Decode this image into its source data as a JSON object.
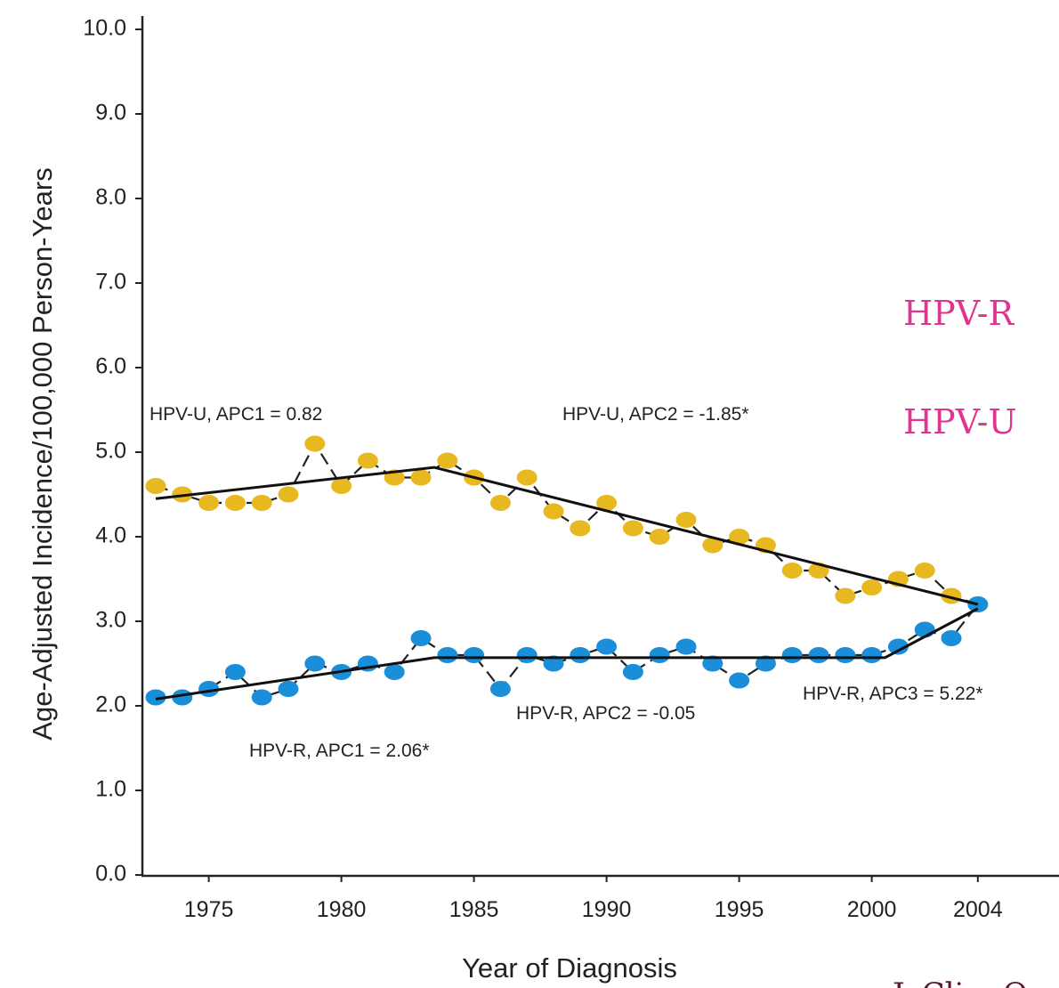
{
  "chart_data": {
    "type": "line",
    "y_label": "Age-Adjusted Incidence/100,000 Person-Years",
    "x_label": "Year of Diagnosis",
    "x": [
      1973,
      1974,
      1975,
      1976,
      1977,
      1978,
      1979,
      1980,
      1981,
      1982,
      1983,
      1984,
      1985,
      1986,
      1987,
      1988,
      1989,
      1990,
      1991,
      1992,
      1993,
      1994,
      1995,
      1996,
      1997,
      1998,
      1999,
      2000,
      2001,
      2002,
      2003,
      2004
    ],
    "series": [
      {
        "name": "HPV-U",
        "color": "#e8b820",
        "values": [
          4.6,
          4.5,
          4.4,
          4.4,
          4.4,
          4.5,
          5.1,
          4.6,
          4.9,
          4.7,
          4.7,
          4.9,
          4.7,
          4.4,
          4.7,
          4.3,
          4.1,
          4.4,
          4.1,
          4.0,
          4.2,
          3.9,
          4.0,
          3.9,
          3.6,
          3.6,
          3.3,
          3.4,
          3.5,
          3.6,
          3.3,
          3.2
        ]
      },
      {
        "name": "HPV-R",
        "color": "#1a8ed8",
        "values": [
          2.1,
          2.1,
          2.2,
          2.4,
          2.1,
          2.2,
          2.5,
          2.4,
          2.5,
          2.4,
          2.8,
          2.6,
          2.6,
          2.2,
          2.6,
          2.5,
          2.6,
          2.7,
          2.4,
          2.6,
          2.7,
          2.5,
          2.3,
          2.5,
          2.6,
          2.6,
          2.6,
          2.6,
          2.7,
          2.9,
          2.8,
          3.2
        ]
      }
    ],
    "trend_lines": [
      {
        "x": [
          1973,
          1983.5,
          2004
        ],
        "values": [
          4.45,
          4.82,
          3.2
        ]
      },
      {
        "x": [
          1973,
          1983.5,
          2000.5,
          2004
        ],
        "values": [
          2.08,
          2.57,
          2.57,
          3.15
        ]
      }
    ],
    "annotations": [
      "HPV-U, APC1 = 0.82",
      "HPV-U, APC2 = -1.85*",
      "HPV-R, APC1 = 2.06*",
      "HPV-R, APC2 = -0.05",
      "HPV-R, APC3 = 5.22*"
    ],
    "footer": "J. Clin. O",
    "xlim": [
      1972.5,
      2006
    ],
    "xticks": [
      1975,
      1980,
      1985,
      1990,
      1995,
      2000,
      2004
    ],
    "ylim": [
      0,
      10
    ],
    "yticks": [
      {
        "value": 0,
        "label": "0.0"
      },
      {
        "value": 1,
        "label": "1.0"
      },
      {
        "value": 2,
        "label": "2.0"
      },
      {
        "value": 3,
        "label": "3.0"
      },
      {
        "value": 4,
        "label": "4.0"
      },
      {
        "value": 5,
        "label": "5.0"
      },
      {
        "value": 6,
        "label": "6.0"
      },
      {
        "value": 7,
        "label": "7.0"
      },
      {
        "value": 8,
        "label": "8.0"
      },
      {
        "value": 9,
        "label": "9.0"
      },
      {
        "value": 10,
        "label": "10.0"
      }
    ]
  }
}
